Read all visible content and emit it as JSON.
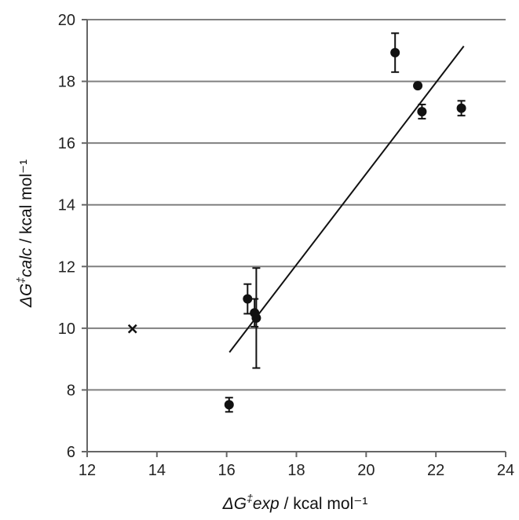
{
  "chart_data": {
    "type": "scatter",
    "title": "",
    "xlabel": {
      "symbol": "ΔG",
      "sup": "‡",
      "sub": "exp",
      "unit": " / kcal mol⁻¹"
    },
    "ylabel": {
      "symbol": "ΔG",
      "sup": "‡",
      "sub": "calc",
      "unit": " / kcal mol⁻¹"
    },
    "xlim": [
      12,
      24
    ],
    "ylim": [
      6,
      20
    ],
    "xticks": [
      12,
      14,
      16,
      18,
      20,
      22,
      24
    ],
    "yticks": [
      6,
      8,
      10,
      12,
      14,
      16,
      18,
      20
    ],
    "grid": "horizontal",
    "legend": "none",
    "series": [
      {
        "marker": "circle",
        "points": [
          {
            "x": 16.07,
            "y": 7.52,
            "err": 0.23
          },
          {
            "x": 16.6,
            "y": 10.95,
            "err": 0.48
          },
          {
            "x": 16.8,
            "y": 10.5,
            "err": 0.45
          },
          {
            "x": 16.85,
            "y": 10.33,
            "err": 1.62
          },
          {
            "x": 20.83,
            "y": 18.93,
            "err": 0.63
          },
          {
            "x": 21.48,
            "y": 17.86,
            "err": 0.05
          },
          {
            "x": 21.6,
            "y": 17.02,
            "err": 0.23
          },
          {
            "x": 22.73,
            "y": 17.13,
            "err": 0.24
          }
        ]
      },
      {
        "marker": "cross",
        "points": [
          {
            "x": 13.3,
            "y": 9.98
          }
        ]
      }
    ],
    "trendline": {
      "x": [
        16.08,
        22.8
      ],
      "y": [
        9.22,
        19.14
      ]
    },
    "colors": {
      "marker": "#111111",
      "grid": "#808080",
      "axis": "#666666"
    }
  }
}
